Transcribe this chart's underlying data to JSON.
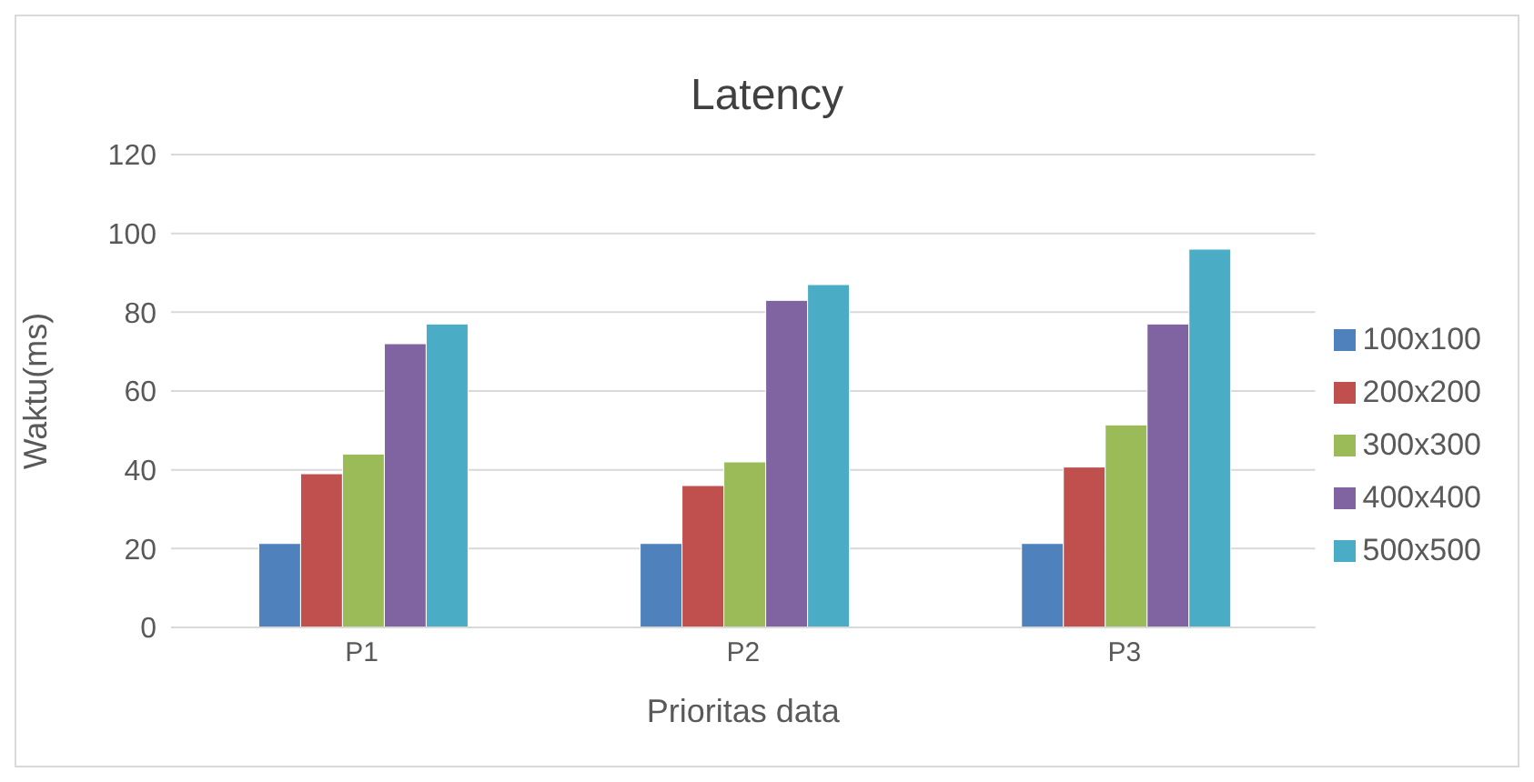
{
  "chart_data": {
    "type": "bar",
    "title": "Latency",
    "xlabel": "Prioritas data",
    "ylabel": "Waktu(ms)",
    "categories": [
      "P1",
      "P2",
      "P3"
    ],
    "series": [
      {
        "name": "100x100",
        "color": "#4f81bd",
        "values": [
          21.3,
          21.3,
          21.3
        ]
      },
      {
        "name": "200x200",
        "color": "#c0504d",
        "values": [
          39,
          36,
          40.7
        ]
      },
      {
        "name": "300x300",
        "color": "#9bbb59",
        "values": [
          44,
          42,
          51.4
        ]
      },
      {
        "name": "400x400",
        "color": "#8064a2",
        "values": [
          72,
          83,
          77
        ]
      },
      {
        "name": "500x500",
        "color": "#4bacc6",
        "values": [
          77,
          87,
          96
        ]
      }
    ],
    "ylim": [
      0,
      120
    ],
    "yticks": [
      0,
      20,
      40,
      60,
      80,
      100,
      120
    ],
    "grid": "y",
    "legend": "right"
  }
}
